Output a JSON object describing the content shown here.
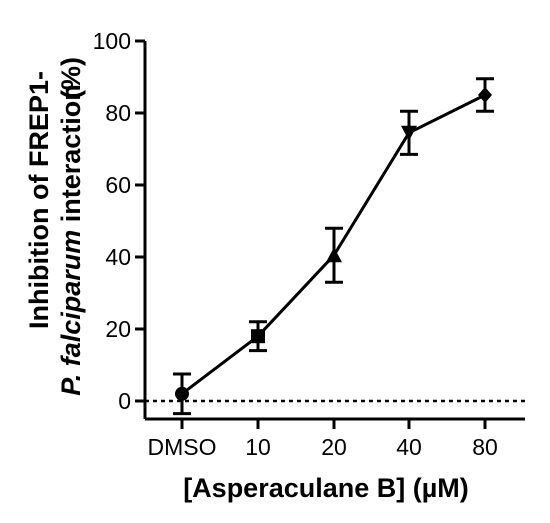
{
  "chart_data": {
    "type": "line",
    "categories": [
      "DMSO",
      "10",
      "20",
      "40",
      "80"
    ],
    "values": [
      2,
      18,
      40.5,
      74.5,
      85
    ],
    "errors": [
      5.5,
      4,
      7.5,
      6,
      4.5
    ],
    "markers": [
      "circle",
      "square",
      "triangle-up",
      "triangle-down",
      "diamond"
    ],
    "xlabel": "[Asperaculane B] (µM)",
    "ylabel_line1": "Inhibition of FREP1-",
    "ylabel_line2_italic": "P. falciparum",
    "ylabel_line2_rest": " interaction",
    "ylabel_unit": "(%)",
    "ylim": [
      0,
      100
    ],
    "yticks": [
      0,
      20,
      40,
      60,
      80,
      100
    ],
    "reference_line": {
      "y": 0,
      "style": "dotted"
    },
    "grid": false,
    "color": "#000000"
  }
}
